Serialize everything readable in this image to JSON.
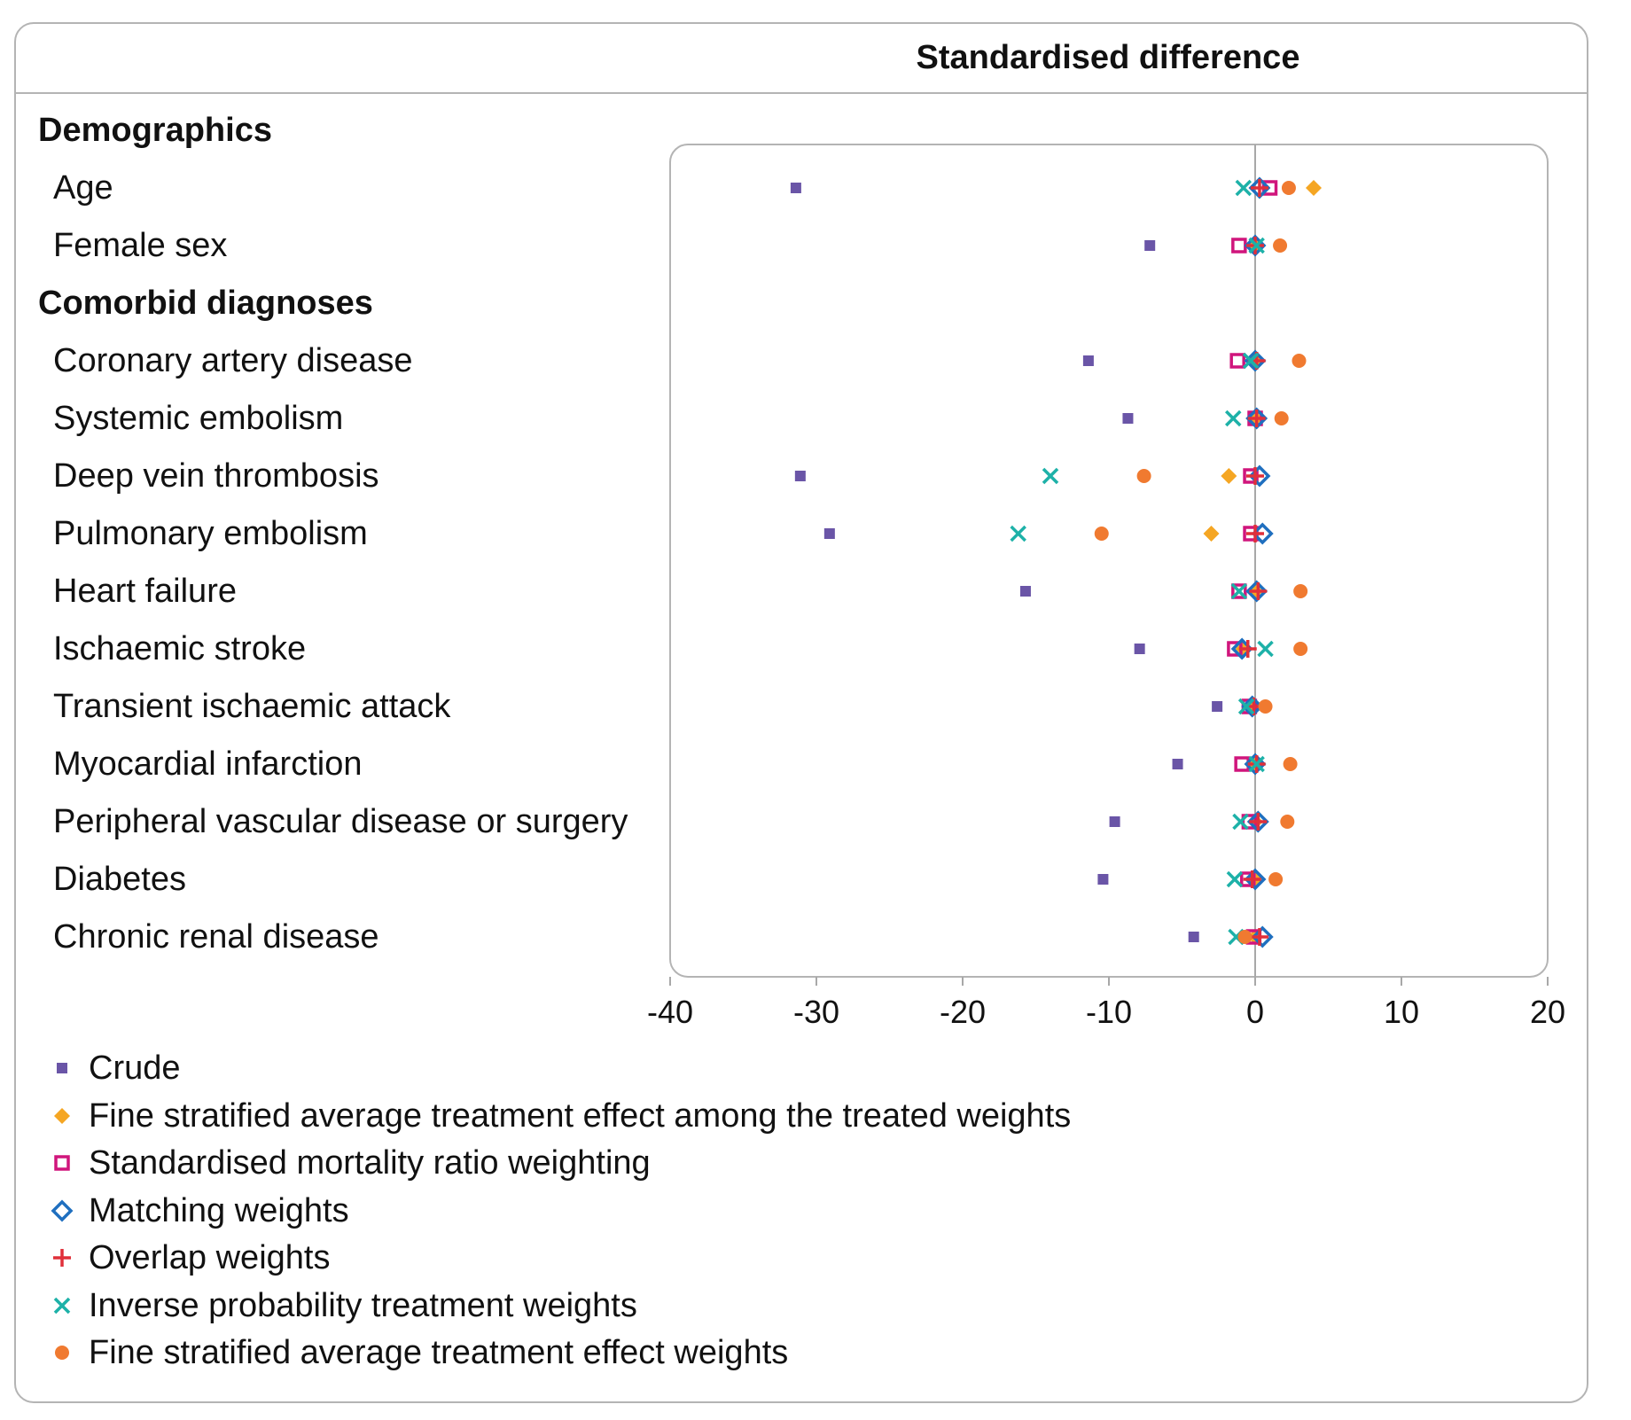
{
  "header": {
    "column_title": "Standardised difference"
  },
  "rows": [
    {
      "label": "Demographics",
      "group": true
    },
    {
      "label": "Age"
    },
    {
      "label": "Female sex"
    },
    {
      "label": "Comorbid diagnoses",
      "group": true
    },
    {
      "label": "Coronary artery disease"
    },
    {
      "label": "Systemic embolism"
    },
    {
      "label": "Deep vein thrombosis"
    },
    {
      "label": "Pulmonary embolism"
    },
    {
      "label": "Heart failure"
    },
    {
      "label": "Ischaemic stroke"
    },
    {
      "label": "Transient ischaemic attack"
    },
    {
      "label": "Myocardial infarction"
    },
    {
      "label": "Peripheral vascular disease or surgery"
    },
    {
      "label": "Diabetes"
    },
    {
      "label": "Chronic renal disease"
    }
  ],
  "legend": [
    {
      "label": "Crude",
      "color": "#6a55a7",
      "marker": "filled-square"
    },
    {
      "label": "Fine stratified average treatment effect among the treated weights",
      "color": "#f5a623",
      "marker": "filled-diamond"
    },
    {
      "label": "Standardised mortality ratio weighting",
      "color": "#d0157c",
      "marker": "open-square"
    },
    {
      "label": "Matching weights",
      "color": "#1f6fbf",
      "marker": "open-diamond"
    },
    {
      "label": "Overlap weights",
      "color": "#e0303a",
      "marker": "plus"
    },
    {
      "label": "Inverse probability treatment weights",
      "color": "#1db1a8",
      "marker": "cross"
    },
    {
      "label": "Fine stratified average treatment effect weights",
      "color": "#f07a30",
      "marker": "filled-circle"
    }
  ],
  "chart_data": {
    "type": "scatter",
    "title": "Standardised difference",
    "xlabel": "",
    "ylabel": "",
    "xlim": [
      -40,
      20
    ],
    "xticks": [
      -40,
      -30,
      -20,
      -10,
      0,
      10,
      20
    ],
    "reference_line": 0,
    "grid": false,
    "legend_position": "bottom",
    "categories": [
      "Age",
      "Female sex",
      "Coronary artery disease",
      "Systemic embolism",
      "Deep vein thrombosis",
      "Pulmonary embolism",
      "Heart failure",
      "Ischaemic stroke",
      "Transient ischaemic attack",
      "Myocardial infarction",
      "Peripheral vascular disease or surgery",
      "Diabetes",
      "Chronic renal disease"
    ],
    "series": [
      {
        "name": "Crude",
        "values": [
          -31.4,
          -7.2,
          -11.4,
          -8.7,
          -31.1,
          -29.1,
          -15.7,
          -7.9,
          -2.6,
          -5.3,
          -9.6,
          -10.4,
          -4.2
        ]
      },
      {
        "name": "Fine stratified average treatment effect among the treated weights",
        "values": [
          4.0,
          0.0,
          0.0,
          0.0,
          -1.8,
          -3.0,
          0.0,
          -0.8,
          0.0,
          0.0,
          0.0,
          0.0,
          0.0
        ]
      },
      {
        "name": "Standardised mortality ratio weighting",
        "values": [
          1.0,
          -1.1,
          -1.2,
          0.0,
          -0.3,
          -0.3,
          -1.1,
          -1.4,
          -0.4,
          -0.9,
          -0.4,
          -0.5,
          -0.1
        ]
      },
      {
        "name": "Matching weights",
        "values": [
          0.3,
          0.0,
          0.0,
          0.1,
          0.3,
          0.5,
          0.1,
          -0.9,
          -0.2,
          0.0,
          0.2,
          0.0,
          0.5
        ]
      },
      {
        "name": "Overlap weights",
        "values": [
          0.3,
          0.0,
          0.1,
          0.1,
          0.0,
          0.0,
          0.2,
          -0.5,
          -0.1,
          0.1,
          0.2,
          -0.2,
          0.3
        ]
      },
      {
        "name": "Inverse probability treatment weights",
        "values": [
          -0.8,
          0.1,
          -0.3,
          -1.5,
          -14.0,
          -16.2,
          -1.1,
          0.7,
          -0.6,
          0.1,
          -1.0,
          -1.4,
          -1.3
        ]
      },
      {
        "name": "Fine stratified average treatment effect weights",
        "values": [
          2.3,
          1.7,
          3.0,
          1.8,
          -7.6,
          -10.5,
          3.1,
          3.1,
          0.7,
          2.4,
          2.2,
          1.4,
          -0.7
        ]
      }
    ]
  }
}
